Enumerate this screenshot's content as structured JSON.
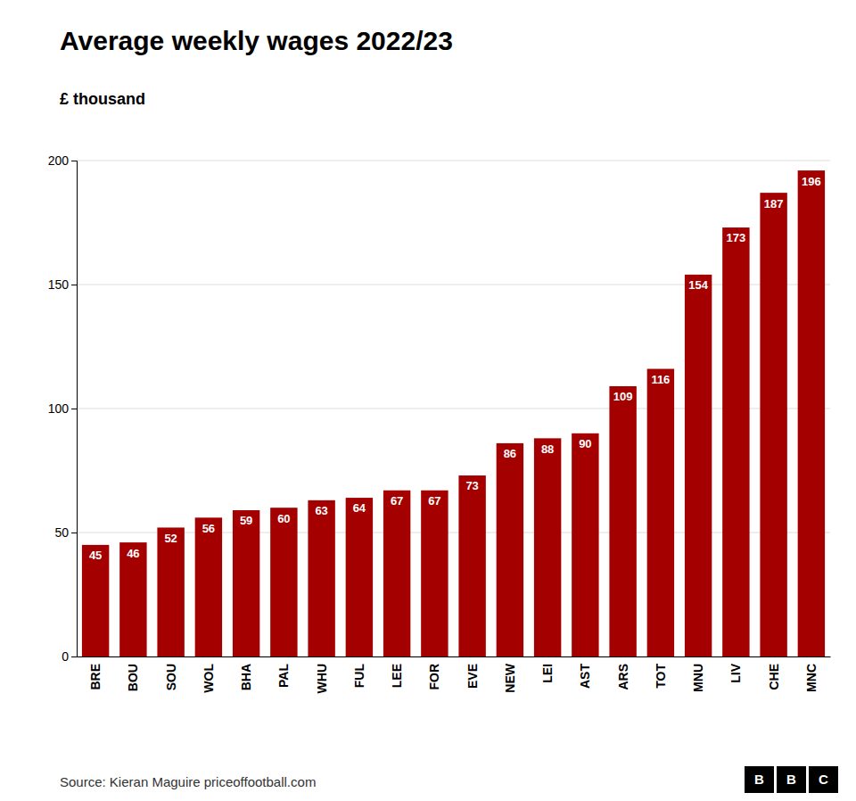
{
  "chart_data": {
    "type": "bar",
    "title": "Average weekly wages 2022/23",
    "ylabel": "£ thousand",
    "annotations": [
      "Source: Kieran Maguire priceoffootball.com",
      "B",
      "B",
      "C"
    ],
    "categories": [
      "BRE",
      "BOU",
      "SOU",
      "WOL",
      "BHA",
      "PAL",
      "WHU",
      "FUL",
      "LEE",
      "FOR",
      "EVE",
      "NEW",
      "LEI",
      "AST",
      "ARS",
      "TOT",
      "MNU",
      "LIV",
      "CHE",
      "MNC"
    ],
    "values": [
      45,
      46,
      52,
      56,
      59,
      60,
      63,
      64,
      67,
      67,
      73,
      86,
      88,
      90,
      109,
      116,
      154,
      173,
      187,
      196
    ],
    "color": "#a50000",
    "ylim": [
      0,
      200
    ],
    "yticks": [
      0,
      50,
      100,
      150,
      200
    ],
    "grid": true,
    "data_labels": true
  }
}
